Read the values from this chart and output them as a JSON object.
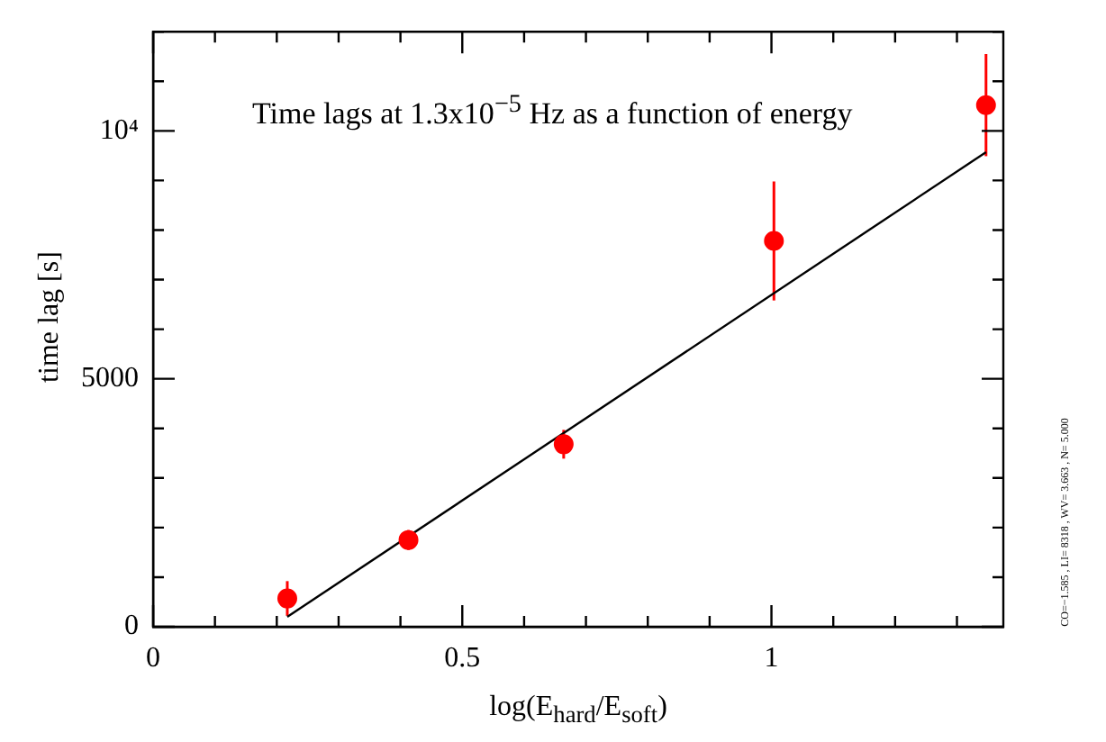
{
  "chart_data": {
    "type": "scatter",
    "title": "Time lags at 1.3x10$^{−5}$ Hz as a function of energy",
    "xlabel": "log(E$_{hard}$/E$_{soft}$)",
    "ylabel": "time lag [s]",
    "annotations": [
      "CO=−1.585 , LI= 8318 , WV= 3.663 , N= 5.000"
    ],
    "xlim": [
      0,
      1.375
    ],
    "ylim": [
      0,
      12000
    ],
    "xticks": [
      0,
      {
        "value": 0.1,
        "label": null
      },
      {
        "value": 0.2,
        "label": null
      },
      {
        "value": 0.3,
        "label": null
      },
      {
        "value": 0.4,
        "label": null
      },
      0.5,
      {
        "value": 0.6,
        "label": null
      },
      {
        "value": 0.7,
        "label": null
      },
      {
        "value": 0.8,
        "label": null
      },
      {
        "value": 0.9,
        "label": null
      },
      1,
      {
        "value": 1.1,
        "label": null
      },
      {
        "value": 1.2,
        "label": null
      },
      {
        "value": 1.3,
        "label": null
      }
    ],
    "yticks": [
      0,
      {
        "value": 1000,
        "label": null
      },
      {
        "value": 2000,
        "label": null
      },
      {
        "value": 3000,
        "label": null
      },
      {
        "value": 4000,
        "label": null
      },
      5000,
      {
        "value": 6000,
        "label": null
      },
      {
        "value": 7000,
        "label": null
      },
      {
        "value": 8000,
        "label": null
      },
      {
        "value": 9000,
        "label": null
      },
      {
        "value": 10000,
        "label": "10⁴"
      },
      {
        "value": 11000,
        "label": null
      },
      {
        "value": 12000,
        "label": null
      }
    ],
    "grid": false,
    "legend": false,
    "series": [
      {
        "type": "scatter",
        "marker": "circle",
        "color": "#ff0000",
        "x": [
          0.217,
          0.413,
          0.664,
          1.004,
          1.347
        ],
        "values": [
          570,
          1750,
          3680,
          7780,
          10520
        ],
        "errors": [
          350,
          200,
          290,
          1200,
          1030
        ]
      },
      {
        "type": "line",
        "color": "#000000",
        "x": [
          0.217,
          1.347
        ],
        "values": [
          200,
          9570
        ]
      }
    ]
  }
}
